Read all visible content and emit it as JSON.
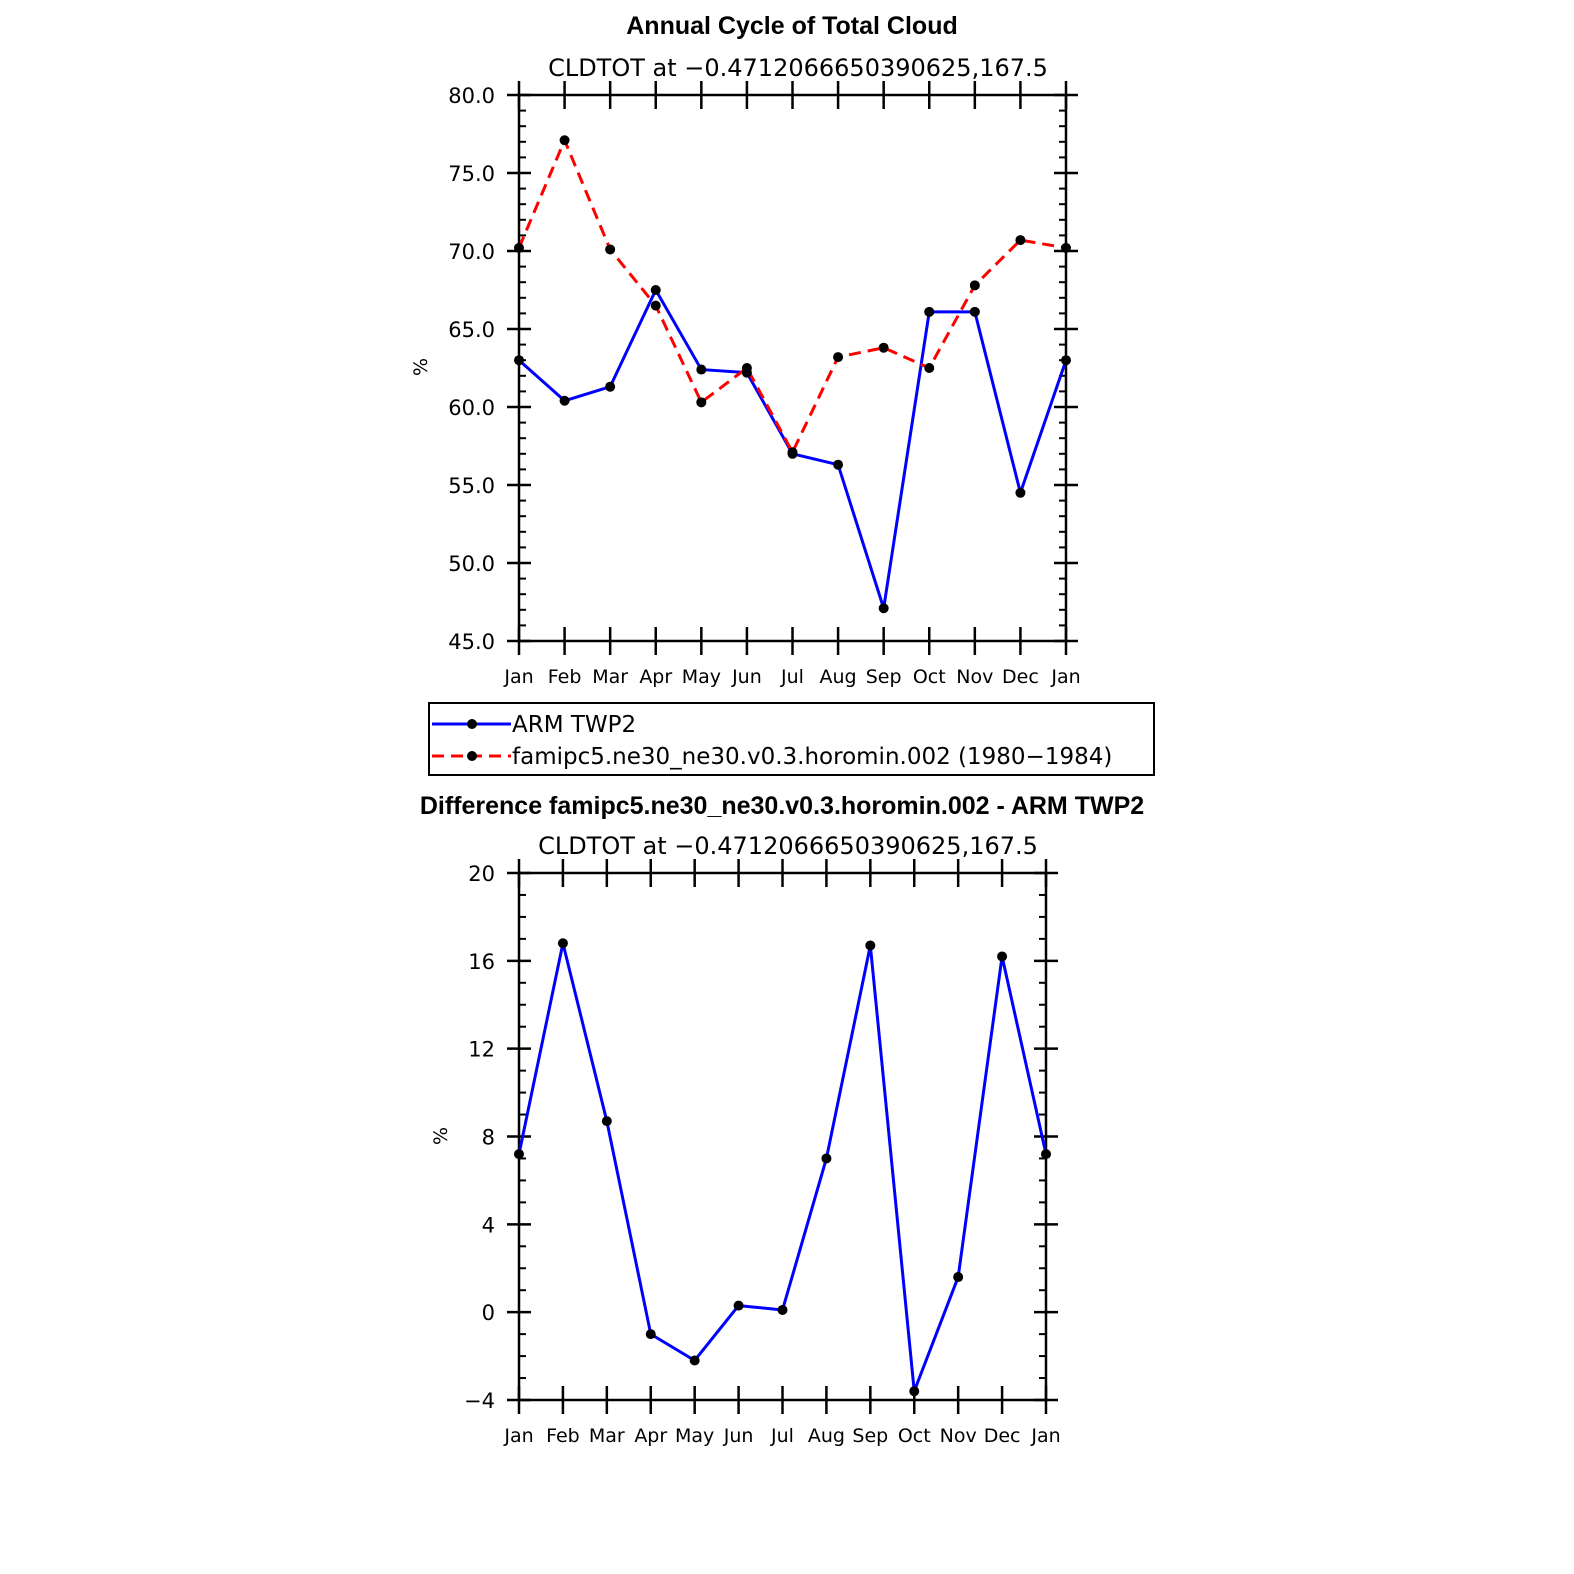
{
  "chart_data": [
    {
      "type": "line",
      "title": "Annual Cycle of Total Cloud",
      "subtitle": "CLDTOT at −0.4712066650390625,167.5",
      "ylabel": "%",
      "xlabel": "",
      "ylim": [
        45,
        80
      ],
      "yticks": [
        "45.0",
        "50.0",
        "55.0",
        "60.0",
        "65.0",
        "70.0",
        "75.0",
        "80.0"
      ],
      "categories": [
        "Jan",
        "Feb",
        "Mar",
        "Apr",
        "May",
        "Jun",
        "Jul",
        "Aug",
        "Sep",
        "Oct",
        "Nov",
        "Dec",
        "Jan"
      ],
      "grid": false,
      "legend_position": "bottom",
      "series": [
        {
          "name": "ARM TWP2",
          "color": "#0000ff",
          "dash": "solid",
          "values": [
            63.0,
            60.4,
            61.3,
            67.5,
            62.4,
            62.2,
            57.0,
            56.3,
            47.1,
            66.1,
            66.1,
            54.5,
            63.0
          ]
        },
        {
          "name": "famipc5.ne30_ne30.v0.3.horomin.002 (1980−1984)",
          "color": "#ff0000",
          "dash": "dashed",
          "values": [
            70.2,
            77.1,
            70.1,
            66.5,
            60.3,
            62.5,
            57.1,
            63.2,
            63.8,
            62.5,
            67.8,
            70.7,
            70.2
          ]
        }
      ]
    },
    {
      "type": "line",
      "title": "Difference famipc5.ne30_ne30.v0.3.horomin.002 - ARM TWP2",
      "subtitle": "CLDTOT at −0.4712066650390625,167.5",
      "ylabel": "%",
      "xlabel": "",
      "ylim": [
        -4,
        20
      ],
      "yticks": [
        "−4",
        "0",
        "4",
        "8",
        "12",
        "16",
        "20"
      ],
      "categories": [
        "Jan",
        "Feb",
        "Mar",
        "Apr",
        "May",
        "Jun",
        "Jul",
        "Aug",
        "Sep",
        "Oct",
        "Nov",
        "Dec",
        "Jan"
      ],
      "grid": false,
      "series": [
        {
          "color": "#0000ff",
          "dash": "solid",
          "values": [
            7.2,
            16.8,
            8.7,
            -1.0,
            -2.2,
            0.3,
            0.1,
            7.0,
            16.7,
            -3.6,
            1.6,
            16.2,
            7.2
          ]
        }
      ]
    }
  ]
}
